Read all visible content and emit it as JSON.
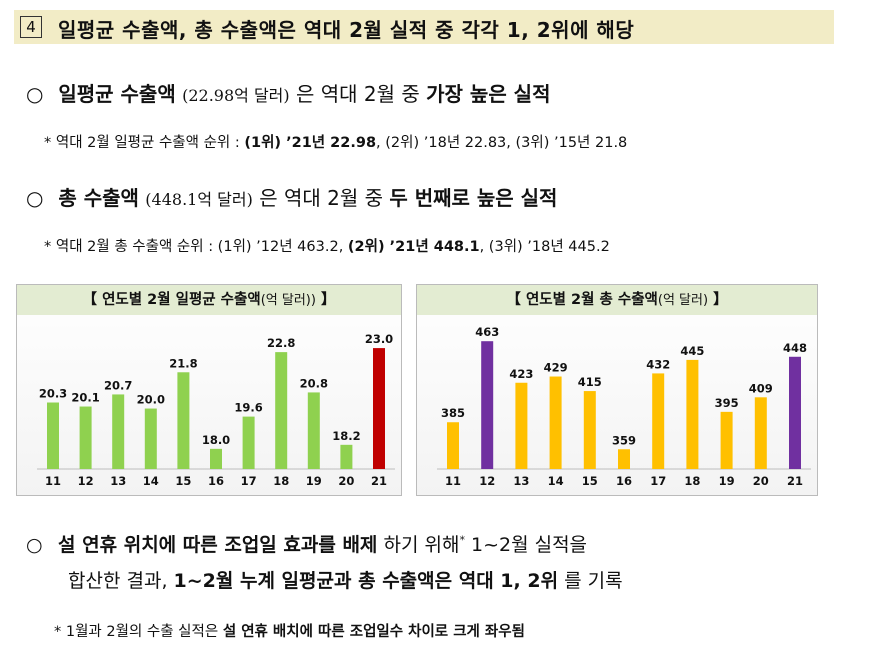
{
  "heading": {
    "number": "4",
    "title": "일평균 수출액, 총 수출액은 역대 2월 실적 중 각각 1, 2위에 해당"
  },
  "point1": {
    "bullet": "○",
    "bold_a": "일평균 수출액",
    "paren": "(22.98억 달러)",
    "normal": "은 역대 2월 중 ",
    "bold_b": "가장 높은 실적"
  },
  "note1": {
    "prefix": "* 역대 2월 일평균 수출액 순위 : ",
    "rank1": "(1위) ’21년 22.98",
    "rest": ", (2위) ’18년 22.83, (3위) ’15년 21.8"
  },
  "point2": {
    "bullet": "○",
    "bold_a": "총 수출액",
    "paren": "(448.1억 달러)",
    "normal": "은 역대 2월 중 ",
    "bold_b": "두 번째로 높은 실적"
  },
  "note2": {
    "prefix": "* 역대 2월 총 수출액 순위 : (1위) ’12년 463.2, ",
    "rank2": "(2위) ’21년 448.1",
    "rest": ", (3위) ’18년 445.2"
  },
  "chart_left_header": {
    "bracket_open": "【",
    "title": "연도별 2월 일평균 수출액",
    "unit": "(억 달러))",
    "bracket_close": "】"
  },
  "chart_right_header": {
    "bracket_open": "【",
    "title": "연도별 2월 총 수출액",
    "unit": "(억 달러)",
    "bracket_close": "】"
  },
  "chart_data": [
    {
      "type": "bar",
      "title": "연도별 2월 일평균 수출액(억 달러))",
      "categories": [
        "11",
        "12",
        "13",
        "14",
        "15",
        "16",
        "17",
        "18",
        "19",
        "20",
        "21"
      ],
      "values": [
        20.3,
        20.1,
        20.7,
        20.0,
        21.8,
        18.0,
        19.6,
        22.8,
        20.8,
        18.2,
        23.0
      ],
      "labels": [
        "20.3",
        "20.1",
        "20.7",
        "20.0",
        "21.8",
        "18.0",
        "19.6",
        "22.8",
        "20.8",
        "18.2",
        "23.0"
      ],
      "ylim": [
        17,
        23.6
      ],
      "grid": false,
      "colors": {
        "default": "#8fd14f",
        "highlight": "#c00000"
      },
      "highlight_index": [
        10
      ]
    },
    {
      "type": "bar",
      "title": "연도별 2월 총 수출액(억 달러)",
      "categories": [
        "11",
        "12",
        "13",
        "14",
        "15",
        "16",
        "17",
        "18",
        "19",
        "20",
        "21"
      ],
      "values": [
        385,
        463,
        423,
        429,
        415,
        359,
        432,
        445,
        395,
        409,
        448
      ],
      "labels": [
        "385",
        "463",
        "423",
        "429",
        "415",
        "359",
        "432",
        "445",
        "395",
        "409",
        "448"
      ],
      "ylim": [
        340,
        468
      ],
      "grid": false,
      "colors": {
        "default": "#ffc000",
        "highlight": "#7030a0"
      },
      "highlight_index": [
        1,
        10
      ]
    }
  ],
  "point3": {
    "bullet": "○",
    "bold_a": "설 연휴 위치에 따른 조업일 효과를 배제",
    "normal_a": "하기 위해",
    "star": "*",
    "normal_b": " 1~2월 실적을",
    "line2_normal": "합산한 결과, ",
    "line2_bold": "1~2월 누계 일평균과 총 수출액은 역대 1, 2위",
    "line2_tail": "를 기록"
  },
  "note3": {
    "prefix": "* 1월과 2월의 수출 실적은 ",
    "bold": "설 연휴 배치에 따른 조업일수 차이로 크게 좌우됨"
  }
}
